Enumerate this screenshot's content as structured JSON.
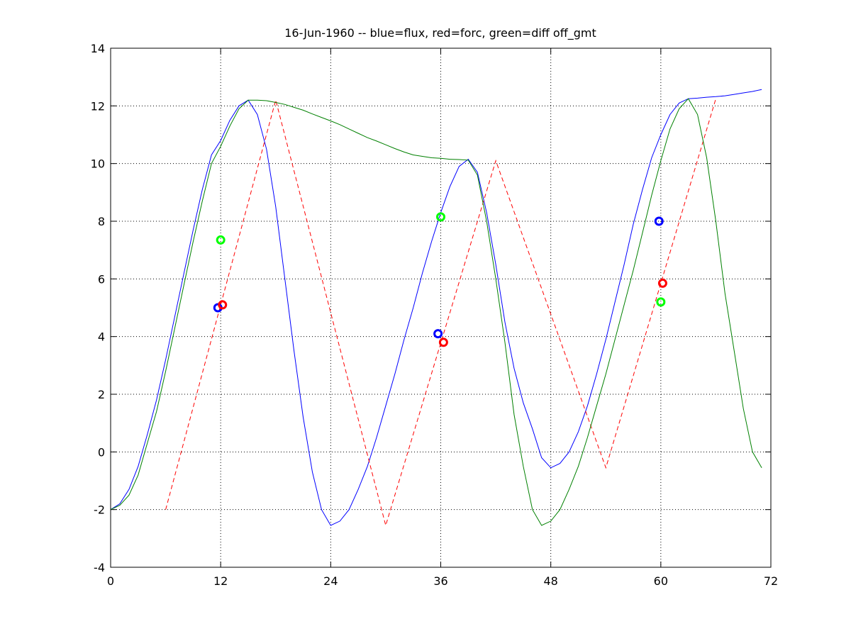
{
  "chart_data": {
    "type": "line",
    "title": "16-Jun-1960 -- blue=flux, red=forc, green=diff off_gmt",
    "xlabel": "",
    "ylabel": "",
    "xlim": [
      0,
      72
    ],
    "ylim": [
      -4,
      14
    ],
    "xticks": [
      0,
      12,
      24,
      36,
      48,
      60,
      72
    ],
    "yticks": [
      -4,
      -2,
      0,
      2,
      4,
      6,
      8,
      10,
      12,
      14
    ],
    "xtick_labels": [
      "0",
      "12",
      "24",
      "36",
      "48",
      "60",
      "72"
    ],
    "ytick_labels": [
      "-4",
      "-2",
      "0",
      "2",
      "4",
      "6",
      "8",
      "10",
      "12",
      "14"
    ],
    "grid": true,
    "series": [
      {
        "name": "flux",
        "color": "#0000ff",
        "style": "solid",
        "x": [
          0,
          1,
          2,
          3,
          4,
          5,
          6,
          7,
          8,
          9,
          10,
          11,
          12,
          13,
          14,
          15,
          16,
          17,
          18,
          19,
          20,
          21,
          22,
          23,
          24,
          25,
          26,
          27,
          28,
          29,
          30,
          31,
          32,
          33,
          34,
          35,
          36,
          37,
          38,
          39,
          40,
          41,
          42,
          43,
          44,
          45,
          46,
          47,
          48,
          49,
          50,
          51,
          52,
          53,
          54,
          55,
          56,
          57,
          58,
          59,
          60,
          61,
          62,
          63,
          64,
          65,
          66,
          67,
          68,
          69,
          70,
          71
        ],
        "y": [
          -2.0,
          -1.8,
          -1.3,
          -0.5,
          0.6,
          1.8,
          3.2,
          4.7,
          6.2,
          7.7,
          9.1,
          10.3,
          10.8,
          11.5,
          12.0,
          12.2,
          11.7,
          10.5,
          8.5,
          6.0,
          3.5,
          1.2,
          -0.7,
          -2.0,
          -2.55,
          -2.4,
          -2.0,
          -1.3,
          -0.5,
          0.5,
          1.6,
          2.7,
          3.9,
          5.0,
          6.2,
          7.3,
          8.3,
          9.2,
          9.9,
          10.15,
          9.7,
          8.3,
          6.5,
          4.5,
          2.9,
          1.7,
          0.8,
          -0.2,
          -0.55,
          -0.4,
          0.0,
          0.7,
          1.6,
          2.7,
          3.9,
          5.2,
          6.5,
          7.9,
          9.1,
          10.2,
          11.0,
          11.7,
          12.1,
          12.25,
          12.27,
          12.3,
          12.32,
          12.35,
          12.4,
          12.45,
          12.5,
          12.57
        ]
      },
      {
        "name": "forc",
        "color": "#ff0000",
        "style": "dashed",
        "x": [
          6,
          18,
          30,
          42,
          54,
          66
        ],
        "y": [
          -2.0,
          12.2,
          -2.55,
          10.1,
          -0.55,
          12.25
        ]
      },
      {
        "name": "diff",
        "color": "#008000",
        "style": "solid",
        "x": [
          0,
          1,
          2,
          3,
          4,
          5,
          6,
          7,
          8,
          9,
          10,
          11,
          12,
          13,
          14,
          15,
          16,
          17,
          18,
          19,
          20,
          21,
          22,
          23,
          24,
          25,
          26,
          27,
          28,
          29,
          30,
          31,
          32,
          33,
          34,
          35,
          36,
          37,
          38,
          39,
          40,
          41,
          42,
          43,
          44,
          45,
          46,
          47,
          48,
          49,
          50,
          51,
          52,
          53,
          54,
          55,
          56,
          57,
          58,
          59,
          60,
          61,
          62,
          63,
          64,
          65,
          66,
          67,
          68,
          69,
          70,
          71
        ],
        "y": [
          -2.0,
          -1.85,
          -1.5,
          -0.8,
          0.3,
          1.4,
          2.8,
          4.3,
          5.8,
          7.3,
          8.7,
          10.0,
          10.6,
          11.3,
          11.9,
          12.2,
          12.2,
          12.18,
          12.12,
          12.05,
          11.95,
          11.85,
          11.72,
          11.6,
          11.48,
          11.35,
          11.2,
          11.05,
          10.9,
          10.78,
          10.65,
          10.52,
          10.4,
          10.3,
          10.25,
          10.2,
          10.18,
          10.15,
          10.14,
          10.12,
          9.6,
          8.0,
          6.0,
          3.8,
          1.3,
          -0.5,
          -2.0,
          -2.55,
          -2.4,
          -2.0,
          -1.3,
          -0.5,
          0.5,
          1.6,
          2.7,
          3.9,
          5.1,
          6.3,
          7.6,
          8.9,
          10.1,
          11.2,
          11.9,
          12.25,
          11.7,
          10.2,
          8.0,
          5.5,
          3.5,
          1.5,
          0.0,
          -0.55
        ]
      }
    ],
    "markers": [
      {
        "series": "flux",
        "color": "#0000ff",
        "points": [
          [
            11.7,
            5.0
          ],
          [
            35.7,
            4.1
          ],
          [
            59.8,
            8.0
          ]
        ]
      },
      {
        "series": "forc",
        "color": "#ff0000",
        "points": [
          [
            12.2,
            5.1
          ],
          [
            36.3,
            3.8
          ],
          [
            60.2,
            5.85
          ]
        ]
      },
      {
        "series": "diff",
        "color": "#00ff00",
        "points": [
          [
            12.0,
            7.35
          ],
          [
            36.0,
            8.15
          ],
          [
            60.0,
            5.2
          ]
        ]
      }
    ]
  }
}
